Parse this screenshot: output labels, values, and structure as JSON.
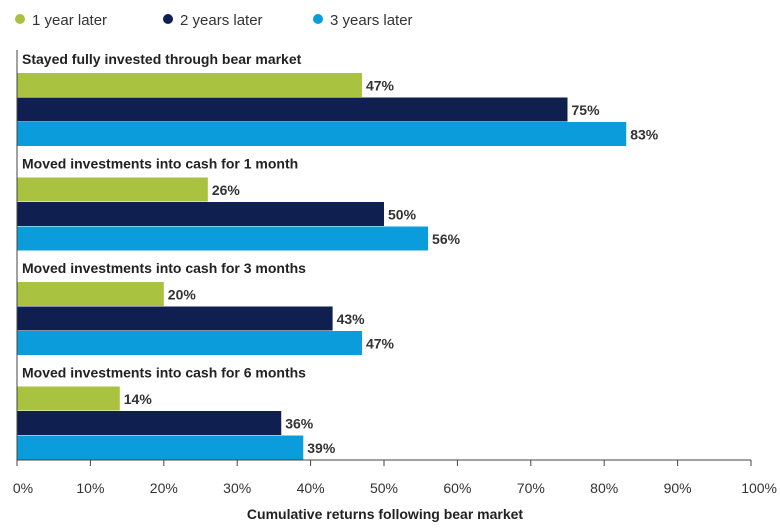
{
  "chart_data": {
    "type": "bar",
    "orientation": "horizontal",
    "title": "",
    "xlabel": "Cumulative returns following bear market",
    "ylabel": "",
    "xlim": [
      0,
      100
    ],
    "x_ticks": [
      "0%",
      "10%",
      "20%",
      "30%",
      "40%",
      "50%",
      "60%",
      "70%",
      "80%",
      "90%",
      "100%"
    ],
    "value_suffix": "%",
    "legend_position": "top-left",
    "grid": false,
    "categories": [
      "Stayed fully invested through bear market",
      "Moved investments into cash for 1 month",
      "Moved investments into cash for 3 months",
      "Moved investments into cash for 6 months"
    ],
    "series": [
      {
        "name": "1 year later",
        "color": "#a9c23f",
        "values": [
          47,
          26,
          20,
          14
        ]
      },
      {
        "name": "2 years later",
        "color": "#0f1f4f",
        "values": [
          75,
          50,
          43,
          36
        ]
      },
      {
        "name": "3 years later",
        "color": "#0b9ddb",
        "values": [
          83,
          56,
          47,
          39
        ]
      }
    ]
  }
}
